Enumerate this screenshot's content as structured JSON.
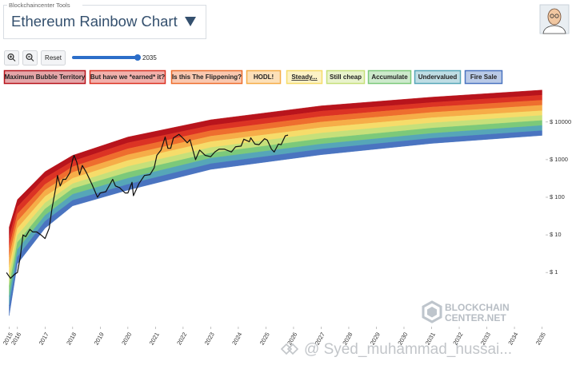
{
  "header": {
    "tools_label": "Blockchaincenter Tools",
    "title": "Ethereum Rainbow Chart"
  },
  "toolbar": {
    "reset": "Reset",
    "slider_value": 2035
  },
  "watermarks": {
    "brand_line1": "BLOCKCHAIN",
    "brand_line2": "CENTER.NET",
    "credit": "@ Syed_muhammad_hussai..."
  },
  "chart_data": {
    "type": "line",
    "log_scale": true,
    "grid": false,
    "xlim": [
      2015.6,
      2035.1
    ],
    "xticks": [
      {
        "value": 2015.7,
        "label": "2015"
      },
      2016,
      2017,
      2018,
      2019,
      2020,
      2021,
      2022,
      2023,
      2024,
      2025,
      2026,
      2027,
      2028,
      2029,
      2030,
      2031,
      2032,
      2033,
      2034,
      2035
    ],
    "ylim": [
      0.04,
      70000
    ],
    "yticks": [
      {
        "value": 1,
        "label": "$ 1"
      },
      {
        "value": 10,
        "label": "$ 10"
      },
      {
        "value": 100,
        "label": "$ 100"
      },
      {
        "value": 1000,
        "label": "$ 1000"
      },
      {
        "value": 10000,
        "label": "$ 10000"
      }
    ],
    "bands": {
      "x": [
        2015.7,
        2016,
        2017,
        2018,
        2020,
        2023,
        2027,
        2031,
        2035
      ],
      "names": [
        "Maximum Bubble Territory",
        "But have we *earned* it?",
        "Is this The Flippening?",
        "HODL!",
        "Steady...",
        "Still cheap",
        "Accumulate",
        "Undervalued",
        "Fire Sale"
      ],
      "colors": [
        "#b8141c",
        "#dc3324",
        "#ee6e2e",
        "#f6ad48",
        "#f6dc6a",
        "#c6e07a",
        "#7cc97a",
        "#56a6b8",
        "#4a74c0"
      ],
      "edges": [
        [
          16,
          87,
          480,
          1300,
          4000,
          11500,
          27000,
          46000,
          71000
        ],
        [
          8.5,
          56,
          330,
          910,
          2800,
          8100,
          19500,
          33000,
          52000
        ],
        [
          4.7,
          36,
          220,
          650,
          1950,
          5900,
          14000,
          25000,
          38000
        ],
        [
          2.6,
          23,
          155,
          460,
          1350,
          4200,
          10000,
          18000,
          28000
        ],
        [
          1.4,
          15,
          105,
          320,
          950,
          3000,
          7100,
          13000,
          20000
        ],
        [
          0.78,
          9.8,
          71,
          230,
          660,
          2100,
          5100,
          9500,
          15000
        ],
        [
          0.43,
          6.3,
          49,
          170,
          460,
          1500,
          3600,
          6900,
          11000
        ],
        [
          0.23,
          4.1,
          33,
          120,
          320,
          1100,
          2600,
          5000,
          8100
        ],
        [
          0.13,
          2.6,
          23,
          83,
          220,
          780,
          1900,
          3700,
          5900
        ],
        [
          0.071,
          1.7,
          15,
          59,
          155,
          550,
          1350,
          2700,
          4400
        ]
      ]
    },
    "series": [
      {
        "color": "#111111",
        "x": [
          2015.6,
          2015.75,
          2015.9,
          2016.0,
          2016.1,
          2016.2,
          2016.3,
          2016.45,
          2016.55,
          2016.7,
          2016.85,
          2017.0,
          2017.15,
          2017.25,
          2017.4,
          2017.45,
          2017.55,
          2017.65,
          2017.75,
          2017.9,
          2018.0,
          2018.05,
          2018.15,
          2018.25,
          2018.35,
          2018.5,
          2018.7,
          2018.9,
          2019.0,
          2019.2,
          2019.45,
          2019.55,
          2019.7,
          2019.9,
          2020.0,
          2020.15,
          2020.2,
          2020.4,
          2020.6,
          2020.8,
          2020.95,
          2021.05,
          2021.2,
          2021.35,
          2021.45,
          2021.55,
          2021.65,
          2021.85,
          2022.0,
          2022.15,
          2022.25,
          2022.45,
          2022.6,
          2022.8,
          2023.0,
          2023.15,
          2023.3,
          2023.5,
          2023.75,
          2023.9,
          2024.1,
          2024.2,
          2024.4,
          2024.45,
          2024.6,
          2024.75,
          2024.95,
          2025.05,
          2025.2,
          2025.3,
          2025.45,
          2025.55,
          2025.7,
          2025.8
        ],
        "values": [
          1.0,
          0.7,
          0.9,
          1.0,
          2.5,
          10,
          9,
          14,
          12,
          12,
          10,
          8,
          15,
          50,
          200,
          380,
          200,
          300,
          300,
          450,
          1000,
          1300,
          850,
          400,
          700,
          450,
          220,
          100,
          130,
          140,
          300,
          200,
          180,
          130,
          130,
          250,
          110,
          230,
          380,
          400,
          600,
          1300,
          1800,
          4000,
          2000,
          2000,
          3800,
          4700,
          3700,
          2800,
          3400,
          1000,
          1800,
          1300,
          1200,
          1600,
          1900,
          1900,
          1600,
          2200,
          2300,
          3500,
          3000,
          3800,
          2600,
          2500,
          3600,
          3300,
          1900,
          1600,
          2600,
          2500,
          4300,
          4500
        ]
      }
    ]
  }
}
